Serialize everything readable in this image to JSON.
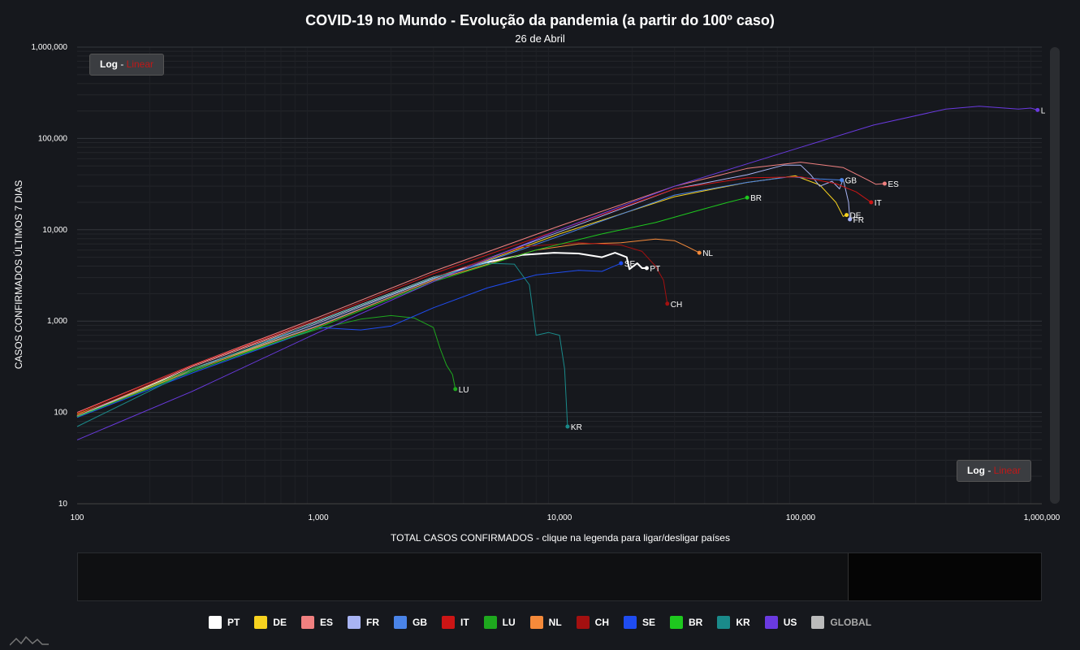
{
  "header": {
    "title": "COVID-19 no Mundo - Evolução da pandemia (a partir do 100º caso)",
    "subtitle": "26 de Abril"
  },
  "controls": {
    "scale_log": "Log",
    "scale_sep": " - ",
    "scale_linear": "Linear"
  },
  "chart_data": {
    "type": "line",
    "xlabel": "TOTAL CASOS CONFIRMADOS - clique na legenda para ligar/desligar países",
    "ylabel": "CASOS CONFIRMADOS ÚLTIMOS 7 DIAS",
    "xscale": "log",
    "yscale": "log",
    "xlim": [
      100,
      1000000
    ],
    "ylim": [
      10,
      1000000
    ],
    "xticks": [
      "100",
      "1,000",
      "10,000",
      "100,000",
      "1,000,000"
    ],
    "yticks": [
      "10",
      "100",
      "1,000",
      "10,000",
      "100,000",
      "1,000,000"
    ],
    "grid": true,
    "series": [
      {
        "name": "PT",
        "color": "#ffffff",
        "width": 2,
        "points": [
          [
            100,
            90
          ],
          [
            300,
            320
          ],
          [
            1000,
            1000
          ],
          [
            3000,
            3000
          ],
          [
            5000,
            4400
          ],
          [
            7000,
            5300
          ],
          [
            9500,
            5600
          ],
          [
            12000,
            5500
          ],
          [
            15000,
            5000
          ],
          [
            17000,
            5600
          ],
          [
            19000,
            5000
          ],
          [
            19500,
            3700
          ],
          [
            21000,
            4300
          ],
          [
            22000,
            3800
          ],
          [
            23000,
            3800
          ]
        ]
      },
      {
        "name": "DE",
        "color": "#f7d21f",
        "width": 1,
        "points": [
          [
            100,
            95
          ],
          [
            300,
            300
          ],
          [
            1000,
            900
          ],
          [
            3000,
            2800
          ],
          [
            10000,
            9000
          ],
          [
            30000,
            23000
          ],
          [
            60000,
            33000
          ],
          [
            95000,
            39000
          ],
          [
            120000,
            31000
          ],
          [
            140000,
            20000
          ],
          [
            150000,
            14000
          ],
          [
            155000,
            14500
          ]
        ]
      },
      {
        "name": "ES",
        "color": "#f08080",
        "width": 1,
        "points": [
          [
            100,
            100
          ],
          [
            300,
            330
          ],
          [
            1000,
            1100
          ],
          [
            3000,
            3500
          ],
          [
            10000,
            11000
          ],
          [
            30000,
            30000
          ],
          [
            60000,
            47000
          ],
          [
            100000,
            55000
          ],
          [
            150000,
            48000
          ],
          [
            190000,
            35000
          ],
          [
            205000,
            31500
          ],
          [
            223000,
            32000
          ]
        ]
      },
      {
        "name": "FR",
        "color": "#a8b4f4",
        "width": 1,
        "points": [
          [
            100,
            92
          ],
          [
            300,
            300
          ],
          [
            1000,
            950
          ],
          [
            3000,
            2900
          ],
          [
            10000,
            9500
          ],
          [
            30000,
            28000
          ],
          [
            60000,
            40000
          ],
          [
            85000,
            51000
          ],
          [
            100000,
            51000
          ],
          [
            110000,
            40000
          ],
          [
            120000,
            30000
          ],
          [
            135000,
            34000
          ],
          [
            145000,
            28000
          ],
          [
            150000,
            36000
          ],
          [
            158000,
            20000
          ],
          [
            160000,
            13000
          ]
        ]
      },
      {
        "name": "GB",
        "color": "#4a84e8",
        "width": 1,
        "points": [
          [
            100,
            90
          ],
          [
            300,
            290
          ],
          [
            1000,
            900
          ],
          [
            3000,
            2800
          ],
          [
            10000,
            8500
          ],
          [
            30000,
            24000
          ],
          [
            60000,
            33000
          ],
          [
            90000,
            38000
          ],
          [
            120000,
            36000
          ],
          [
            148000,
            35000
          ]
        ]
      },
      {
        "name": "IT",
        "color": "#cc1515",
        "width": 1,
        "points": [
          [
            100,
            98
          ],
          [
            300,
            330
          ],
          [
            1000,
            1050
          ],
          [
            3000,
            3300
          ],
          [
            10000,
            10000
          ],
          [
            30000,
            28000
          ],
          [
            60000,
            37000
          ],
          [
            100000,
            38000
          ],
          [
            140000,
            32000
          ],
          [
            170000,
            26000
          ],
          [
            196000,
            20000
          ]
        ]
      },
      {
        "name": "LU",
        "color": "#1ea81e",
        "width": 1,
        "points": [
          [
            100,
            88
          ],
          [
            300,
            300
          ],
          [
            1000,
            820
          ],
          [
            1500,
            1050
          ],
          [
            2000,
            1150
          ],
          [
            2500,
            1080
          ],
          [
            3000,
            850
          ],
          [
            3200,
            500
          ],
          [
            3400,
            330
          ],
          [
            3600,
            260
          ],
          [
            3700,
            180
          ]
        ]
      },
      {
        "name": "NL",
        "color": "#f58a3a",
        "width": 1,
        "points": [
          [
            100,
            90
          ],
          [
            300,
            290
          ],
          [
            1000,
            880
          ],
          [
            3000,
            2800
          ],
          [
            8000,
            6000
          ],
          [
            12000,
            7000
          ],
          [
            18000,
            7200
          ],
          [
            25000,
            7900
          ],
          [
            30000,
            7600
          ],
          [
            34000,
            6500
          ],
          [
            38000,
            5600
          ]
        ]
      },
      {
        "name": "CH",
        "color": "#a31010",
        "width": 1,
        "points": [
          [
            100,
            93
          ],
          [
            300,
            320
          ],
          [
            1000,
            1000
          ],
          [
            3000,
            3000
          ],
          [
            7000,
            6500
          ],
          [
            12000,
            7200
          ],
          [
            18000,
            6800
          ],
          [
            22000,
            5800
          ],
          [
            25000,
            4000
          ],
          [
            27000,
            2800
          ],
          [
            28000,
            1550
          ]
        ]
      },
      {
        "name": "SE",
        "color": "#1f4cf0",
        "width": 1,
        "points": [
          [
            100,
            88
          ],
          [
            300,
            270
          ],
          [
            700,
            600
          ],
          [
            1000,
            850
          ],
          [
            1500,
            800
          ],
          [
            2000,
            880
          ],
          [
            3000,
            1400
          ],
          [
            5000,
            2300
          ],
          [
            8000,
            3200
          ],
          [
            12000,
            3600
          ],
          [
            15000,
            3500
          ],
          [
            18000,
            4300
          ]
        ]
      },
      {
        "name": "BR",
        "color": "#1ec81e",
        "width": 1,
        "points": [
          [
            100,
            90
          ],
          [
            300,
            280
          ],
          [
            1000,
            850
          ],
          [
            3000,
            2700
          ],
          [
            8000,
            6000
          ],
          [
            15000,
            9000
          ],
          [
            25000,
            12000
          ],
          [
            40000,
            17000
          ],
          [
            50000,
            20000
          ],
          [
            60000,
            22500
          ]
        ]
      },
      {
        "name": "KR",
        "color": "#1a8a8a",
        "width": 1,
        "points": [
          [
            100,
            70
          ],
          [
            300,
            290
          ],
          [
            1000,
            1000
          ],
          [
            3000,
            3000
          ],
          [
            5000,
            4300
          ],
          [
            6500,
            4200
          ],
          [
            7500,
            2500
          ],
          [
            8000,
            700
          ],
          [
            9000,
            750
          ],
          [
            10000,
            700
          ],
          [
            10500,
            300
          ],
          [
            10800,
            70
          ]
        ]
      },
      {
        "name": "US",
        "color": "#6a3ae0",
        "width": 1,
        "points": [
          [
            100,
            50
          ],
          [
            300,
            170
          ],
          [
            1000,
            750
          ],
          [
            3000,
            2700
          ],
          [
            10000,
            10000
          ],
          [
            30000,
            30000
          ],
          [
            100000,
            80000
          ],
          [
            200000,
            140000
          ],
          [
            400000,
            210000
          ],
          [
            550000,
            225000
          ],
          [
            800000,
            210000
          ],
          [
            900000,
            215000
          ],
          [
            960000,
            205000
          ]
        ]
      }
    ],
    "end_labels": [
      {
        "series": "PT",
        "label": "PT",
        "x": 23000,
        "y": 3800
      },
      {
        "series": "DE",
        "label": "DE",
        "x": 155000,
        "y": 14500
      },
      {
        "series": "ES",
        "label": "ES",
        "x": 223000,
        "y": 32000
      },
      {
        "series": "FR",
        "label": "FR",
        "x": 160000,
        "y": 13000
      },
      {
        "series": "GB",
        "label": "GB",
        "x": 148000,
        "y": 35000
      },
      {
        "series": "IT",
        "label": "IT",
        "x": 196000,
        "y": 20000
      },
      {
        "series": "LU",
        "label": "LU",
        "x": 3700,
        "y": 180
      },
      {
        "series": "NL",
        "label": "NL",
        "x": 38000,
        "y": 5600
      },
      {
        "series": "CH",
        "label": "CH",
        "x": 28000,
        "y": 1550
      },
      {
        "series": "SE",
        "label": "SE",
        "x": 18000,
        "y": 4300
      },
      {
        "series": "BR",
        "label": "BR",
        "x": 60000,
        "y": 22500
      },
      {
        "series": "KR",
        "label": "KR",
        "x": 10800,
        "y": 70
      },
      {
        "series": "US",
        "label": "L",
        "x": 960000,
        "y": 205000
      }
    ]
  },
  "legend": [
    {
      "name": "PT",
      "color": "#ffffff"
    },
    {
      "name": "DE",
      "color": "#f7d21f"
    },
    {
      "name": "ES",
      "color": "#f08080"
    },
    {
      "name": "FR",
      "color": "#a8b4f4"
    },
    {
      "name": "GB",
      "color": "#4a84e8"
    },
    {
      "name": "IT",
      "color": "#cc1515"
    },
    {
      "name": "LU",
      "color": "#1ea81e"
    },
    {
      "name": "NL",
      "color": "#f58a3a"
    },
    {
      "name": "CH",
      "color": "#a31010"
    },
    {
      "name": "SE",
      "color": "#1f4cf0"
    },
    {
      "name": "BR",
      "color": "#1ec81e"
    },
    {
      "name": "KR",
      "color": "#1a8a8a"
    },
    {
      "name": "US",
      "color": "#6a3ae0"
    },
    {
      "name": "GLOBAL",
      "color": "#bbbbbb",
      "hidden": true
    }
  ]
}
